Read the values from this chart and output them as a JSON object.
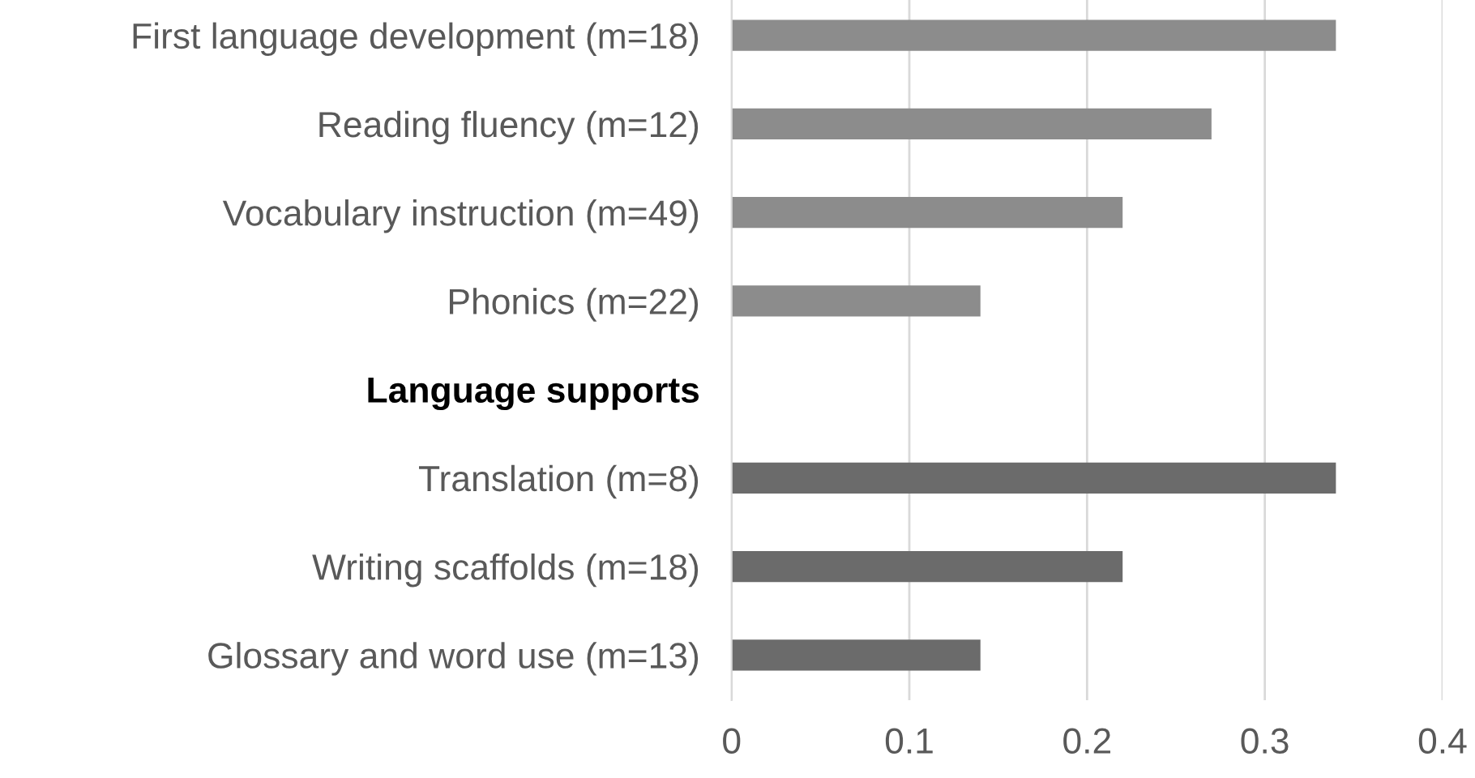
{
  "chart_data": {
    "type": "bar",
    "orientation": "horizontal",
    "categories": [
      "First language development (m=18)",
      "Reading fluency (m=12)",
      "Vocabulary instruction (m=49)",
      "Phonics (m=22)",
      "Language supports",
      "Translation (m=8)",
      "Writing scaffolds (m=18)",
      "Glossary and word use (m=13)"
    ],
    "values": [
      0.34,
      0.27,
      0.22,
      0.14,
      null,
      0.34,
      0.22,
      0.14
    ],
    "colors": [
      "#8c8c8c",
      "#8c8c8c",
      "#8c8c8c",
      "#8c8c8c",
      "#8c8c8c",
      "#6b6b6b",
      "#6b6b6b",
      "#6b6b6b"
    ],
    "xlim": [
      0,
      0.4
    ],
    "xticks": [
      0,
      0.1,
      0.2,
      0.3,
      0.4
    ],
    "grid": "x"
  }
}
